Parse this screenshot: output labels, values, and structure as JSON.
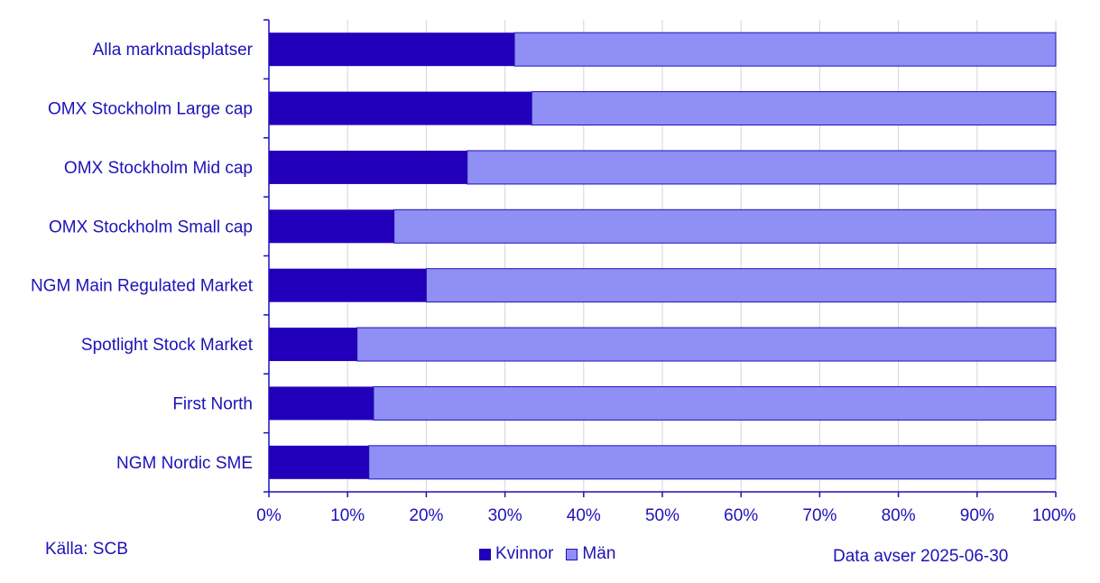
{
  "chart_data": {
    "type": "bar",
    "orientation": "horizontal",
    "stacked": true,
    "categories": [
      "Alla marknadsplatser",
      "OMX Stockholm Large cap",
      "OMX Stockholm Mid cap",
      "OMX Stockholm Small cap",
      "NGM Main Regulated Market",
      "Spotlight Stock Market",
      "First North",
      "NGM Nordic SME"
    ],
    "series": [
      {
        "name": "Kvinnor",
        "values": [
          31.2,
          33.4,
          25.2,
          15.9,
          20.0,
          11.2,
          13.3,
          12.7
        ],
        "color": "#2200bb"
      },
      {
        "name": "Män",
        "values": [
          68.8,
          66.6,
          74.8,
          84.1,
          80.0,
          88.8,
          86.7,
          87.3
        ],
        "color": "#8f8ff5"
      }
    ],
    "xlim": [
      0,
      100
    ],
    "x_ticks": [
      "0%",
      "10%",
      "20%",
      "30%",
      "40%",
      "50%",
      "60%",
      "70%",
      "80%",
      "90%",
      "100%"
    ],
    "grid": true,
    "legend_position": "bottom-center",
    "text_color": "#1f12b8"
  },
  "footer": {
    "source": "Källa: SCB",
    "note": "Data avser 2025-06-30"
  }
}
